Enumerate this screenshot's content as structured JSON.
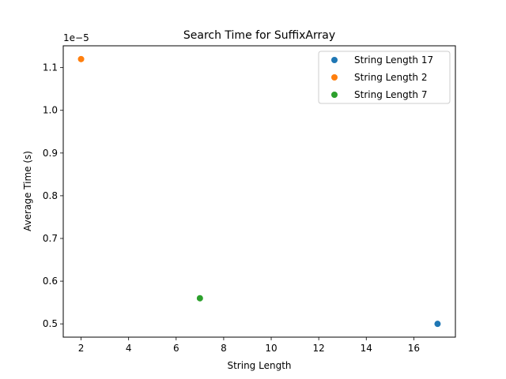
{
  "chart_data": {
    "type": "scatter",
    "title": "Search Time for SuffixArray",
    "xlabel": "String Length",
    "ylabel": "Average Time (s)",
    "y_offset_label": "1e−5",
    "xlim": [
      1.25,
      17.75
    ],
    "ylim": [
      0.4689,
      1.1511
    ],
    "x_ticks": [
      2,
      4,
      6,
      8,
      10,
      12,
      14,
      16
    ],
    "y_ticks": [
      0.5,
      0.6,
      0.7,
      0.8,
      0.9,
      1.0,
      1.1
    ],
    "y_tick_labels": [
      "0.5",
      "0.6",
      "0.7",
      "0.8",
      "0.9",
      "1.0",
      "1.1"
    ],
    "grid": false,
    "legend_position": "top-right",
    "series": [
      {
        "name": "String Length 17",
        "color": "#1f77b4",
        "points": [
          {
            "x": 17,
            "y": 0.5
          }
        ]
      },
      {
        "name": "String Length 2",
        "color": "#ff7f0e",
        "points": [
          {
            "x": 2,
            "y": 1.12
          }
        ]
      },
      {
        "name": "String Length 7",
        "color": "#2ca02c",
        "points": [
          {
            "x": 7,
            "y": 0.56
          }
        ]
      }
    ]
  }
}
